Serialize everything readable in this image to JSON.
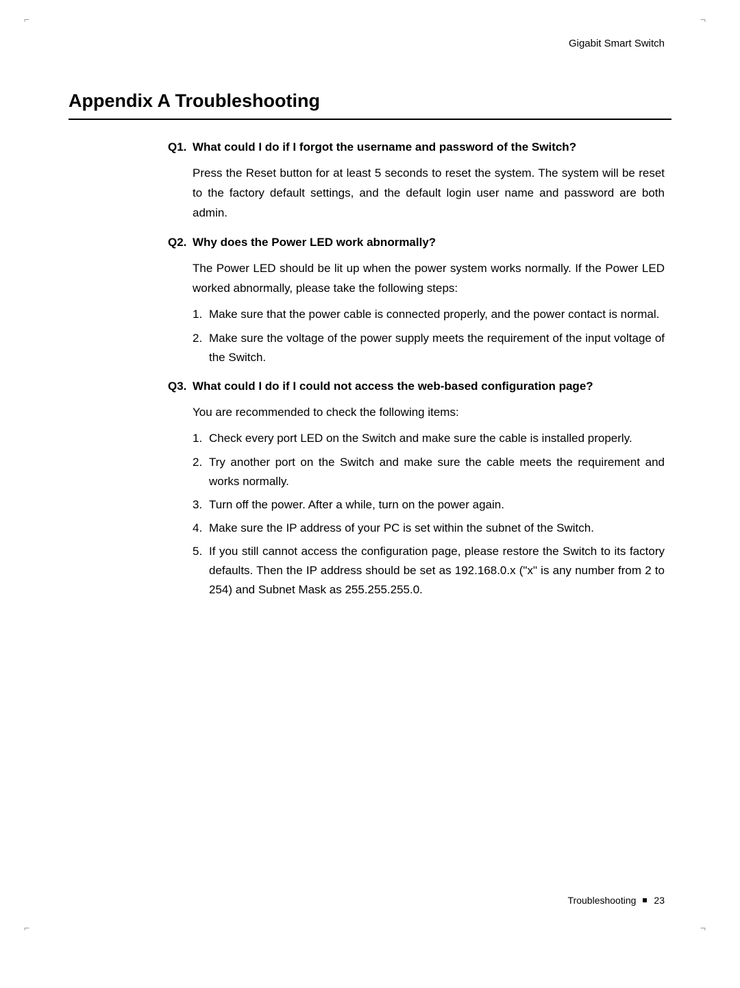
{
  "header": {
    "product_name": "Gigabit Smart Switch"
  },
  "title": "Appendix A  Troubleshooting",
  "questions": [
    {
      "label": "Q1.",
      "title": "What could I do if I forgot the username and password of the Switch?",
      "answer": "Press the Reset button for at least 5 seconds to reset the system. The system will be reset to the factory default settings, and the default login user name and password are both admin.",
      "items": []
    },
    {
      "label": "Q2.",
      "title": "Why does the Power LED work abnormally?",
      "answer": "The Power LED should be lit up when the power system works normally. If the Power LED worked abnormally, please take the following steps:",
      "items": [
        {
          "num": "1.",
          "text": "Make sure that the power cable is connected properly, and the power contact is normal."
        },
        {
          "num": "2.",
          "text": "Make sure the voltage of the power supply meets the requirement of the input voltage of the Switch."
        }
      ]
    },
    {
      "label": "Q3.",
      "title": "What could I do if I could not access the web-based configuration page?",
      "answer": "You are recommended to check the following items:",
      "items": [
        {
          "num": "1.",
          "text": "Check every port LED on the Switch and make sure the cable is installed properly."
        },
        {
          "num": "2.",
          "text": "Try another port on the Switch and make sure the cable meets the requirement and works normally."
        },
        {
          "num": "3.",
          "text": "Turn off the power. After a while, turn on the power again."
        },
        {
          "num": "4.",
          "text": "Make sure the IP address of your PC is set within the subnet of the Switch."
        },
        {
          "num": "5.",
          "text": "If you still cannot access the configuration page, please restore the Switch to its factory defaults. Then the IP address should be set as 192.168.0.x (\"x\" is any number from 2 to 254) and Subnet Mask as 255.255.255.0."
        }
      ]
    }
  ],
  "footer": {
    "section": "Troubleshooting",
    "page": "23"
  }
}
